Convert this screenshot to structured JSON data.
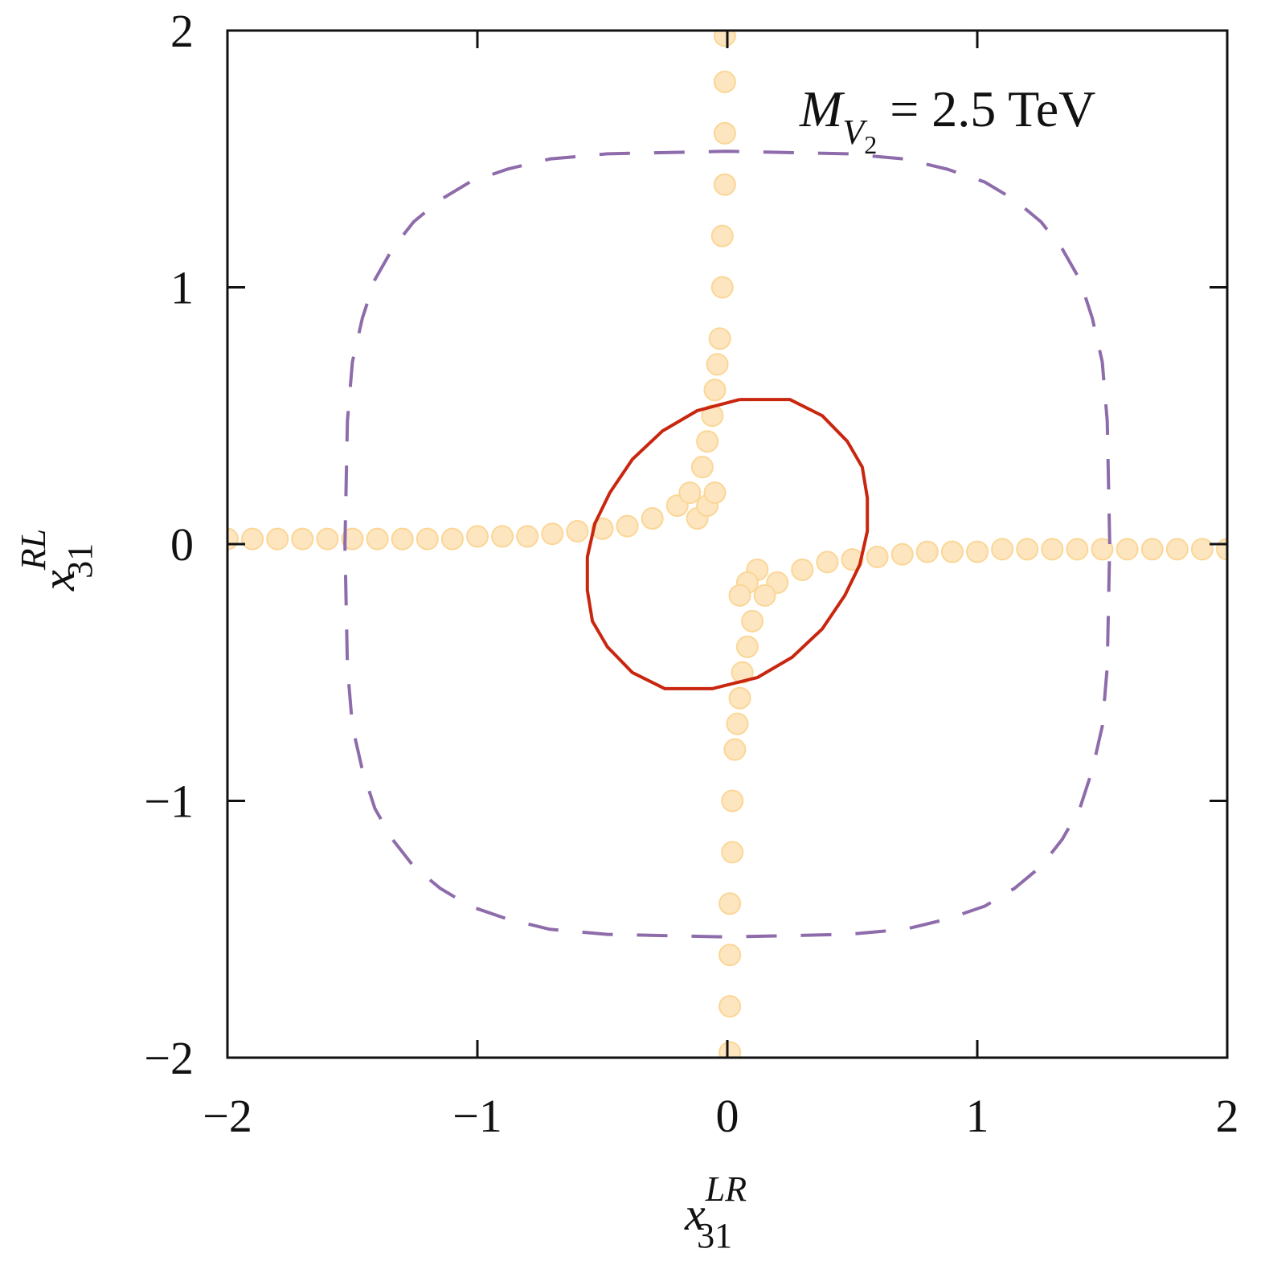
{
  "chart_data": {
    "type": "scatter",
    "xlabel": {
      "base": "x",
      "sub": "31",
      "sup": "LR"
    },
    "ylabel": {
      "base": "x",
      "sub": "31",
      "sup": "RL"
    },
    "annotation": {
      "base": "M",
      "sub": "V",
      "subsub": "2",
      "rest": "= 2.5 TeV"
    },
    "xlim": [
      -2,
      2
    ],
    "ylim": [
      -2,
      2
    ],
    "xticks": [
      {
        "value": -2,
        "label": "−2"
      },
      {
        "value": -1,
        "label": "−1"
      },
      0,
      1,
      2
    ],
    "yticks": [
      {
        "value": -2,
        "label": "−2"
      },
      {
        "value": -1,
        "label": "−1"
      },
      0,
      1,
      2
    ],
    "series": [
      {
        "type": "scatter",
        "color": "#fde6bf",
        "edgecolor": "#fbd697",
        "x": [
          -2,
          -1.9,
          -1.8,
          -1.7,
          -1.6,
          -1.5,
          -1.4,
          -1.3,
          -1.2,
          -1.1,
          -1,
          -0.9,
          -0.8,
          -0.7,
          -0.6,
          -0.5,
          -0.4,
          -0.3,
          -0.2,
          -0.15,
          -0.12,
          -0.1,
          -0.08,
          -0.08,
          -0.06,
          -0.05,
          -0.05,
          -0.04,
          -0.03,
          -0.02,
          -0.02,
          -0.01,
          -0.01,
          -0.01,
          -0.01,
          2,
          1.9,
          1.8,
          1.7,
          1.6,
          1.5,
          1.4,
          1.3,
          1.2,
          1.1,
          1,
          0.9,
          0.8,
          0.7,
          0.6,
          0.5,
          0.4,
          0.3,
          0.2,
          0.15,
          0.12,
          0.1,
          0.08,
          0.08,
          0.06,
          0.05,
          0.05,
          0.04,
          0.03,
          0.02,
          0.02,
          0.01,
          0.01,
          0.01,
          0.01
        ],
        "y": [
          0.02,
          0.02,
          0.02,
          0.02,
          0.02,
          0.02,
          0.02,
          0.02,
          0.02,
          0.02,
          0.03,
          0.03,
          0.03,
          0.04,
          0.05,
          0.06,
          0.07,
          0.1,
          0.15,
          0.2,
          0.1,
          0.3,
          0.15,
          0.4,
          0.5,
          0.2,
          0.6,
          0.7,
          0.8,
          1.0,
          1.2,
          1.4,
          1.6,
          1.8,
          1.98,
          -0.02,
          -0.02,
          -0.02,
          -0.02,
          -0.02,
          -0.02,
          -0.02,
          -0.02,
          -0.02,
          -0.02,
          -0.03,
          -0.03,
          -0.03,
          -0.04,
          -0.05,
          -0.06,
          -0.07,
          -0.1,
          -0.15,
          -0.2,
          -0.1,
          -0.3,
          -0.15,
          -0.4,
          -0.5,
          -0.2,
          -0.6,
          -0.7,
          -0.8,
          -1.0,
          -1.2,
          -1.4,
          -1.6,
          -1.8,
          -1.98
        ]
      },
      {
        "type": "line",
        "color": "#c8260f",
        "x": [
          0.05,
          0.25,
          0.38,
          0.48,
          0.54,
          0.56,
          0.56,
          0.53,
          0.47,
          0.38,
          0.26,
          0.12,
          -0.06,
          -0.25,
          -0.38,
          -0.48,
          -0.54,
          -0.56,
          -0.56,
          -0.53,
          -0.47,
          -0.38,
          -0.26,
          -0.12,
          0.05
        ],
        "y": [
          0.563,
          0.563,
          0.5,
          0.4,
          0.3,
          0.18,
          0.05,
          -0.08,
          -0.2,
          -0.33,
          -0.44,
          -0.52,
          -0.563,
          -0.563,
          -0.5,
          -0.4,
          -0.3,
          -0.18,
          -0.05,
          0.08,
          0.2,
          0.33,
          0.44,
          0.52,
          0.563
        ]
      },
      {
        "type": "line",
        "color": "#8e6cab",
        "dashed": true,
        "x": [
          1.53,
          1.52,
          1.5,
          1.46,
          1.41,
          1.34,
          1.255,
          1.15,
          1.03,
          0.88,
          0.71,
          0.48,
          0,
          -0.48,
          -0.71,
          -0.88,
          -1.03,
          -1.15,
          -1.255,
          -1.34,
          -1.41,
          -1.46,
          -1.5,
          -1.52,
          -1.53,
          -1.52,
          -1.5,
          -1.46,
          -1.41,
          -1.34,
          -1.255,
          -1.15,
          -1.03,
          -0.88,
          -0.71,
          -0.48,
          0,
          0.48,
          0.71,
          0.88,
          1.03,
          1.15,
          1.255,
          1.34,
          1.41,
          1.46,
          1.5,
          1.52,
          1.53
        ],
        "y": [
          0,
          0.48,
          0.71,
          0.88,
          1.03,
          1.15,
          1.255,
          1.34,
          1.41,
          1.46,
          1.5,
          1.52,
          1.53,
          1.52,
          1.5,
          1.46,
          1.41,
          1.34,
          1.255,
          1.15,
          1.03,
          0.88,
          0.71,
          0.48,
          0,
          -0.48,
          -0.71,
          -0.88,
          -1.03,
          -1.15,
          -1.255,
          -1.34,
          -1.41,
          -1.46,
          -1.5,
          -1.52,
          -1.53,
          -1.52,
          -1.5,
          -1.46,
          -1.41,
          -1.34,
          -1.255,
          -1.15,
          -1.03,
          -0.88,
          -0.71,
          -0.48,
          0
        ]
      }
    ]
  }
}
